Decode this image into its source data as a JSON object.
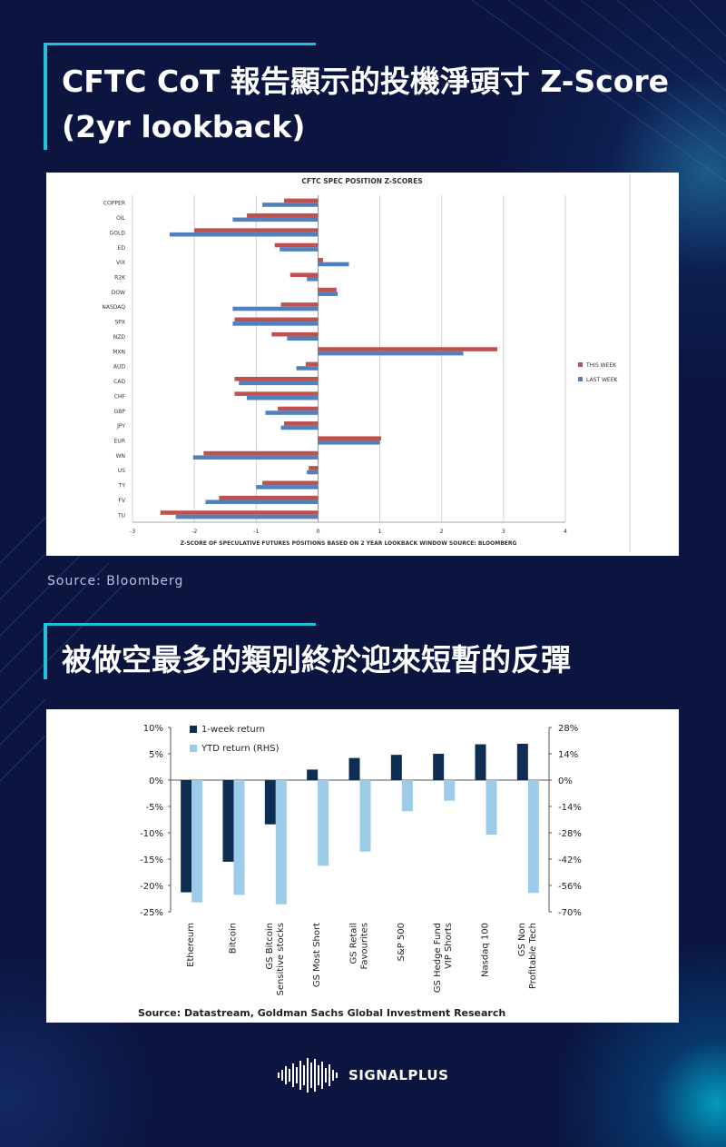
{
  "section1": {
    "title_line1": "CFTC CoT 報告顯示的投機淨頭寸 Z-Score",
    "title_line2": "(2yr lookback)",
    "source": "Source:  Bloomberg"
  },
  "section2": {
    "title": "被做空最多的類別終於迎來短暫的反彈"
  },
  "brand": {
    "name": "SIGNALPLUS"
  },
  "colors": {
    "background": "#0b1540",
    "accent": "#1fc2d8",
    "this_week": "#c0504d",
    "last_week": "#4f81bd",
    "one_week_return": "#0d2d52",
    "ytd_return": "#9dcbea"
  },
  "chart_data": [
    {
      "type": "bar",
      "orientation": "horizontal",
      "title": "CFTC SPEC POSITION Z-SCORES",
      "xlabel": "Z-SCORE OF SPECULATIVE  FUTURES  POSITIONS  BASED ON 2 YEAR LOOKBACK WINDOW   SOURCE:  BLOOMBERG",
      "xlim": [
        -3,
        4
      ],
      "xticks": [
        -3,
        -2,
        -1,
        0,
        1,
        2,
        3,
        4
      ],
      "grid": true,
      "legend_position": "right",
      "categories": [
        "COPPER",
        "OIL",
        "GOLD",
        "ED",
        "VIX",
        "R2K",
        "DOW",
        "NASDAQ",
        "SPX",
        "NZD",
        "MXN",
        "AUD",
        "CAD",
        "CHF",
        "GBP",
        "JPY",
        "EUR",
        "WN",
        "US",
        "TY",
        "FV",
        "TU"
      ],
      "series": [
        {
          "name": "THIS WEEK",
          "values": [
            -0.55,
            -1.15,
            -2.0,
            -0.7,
            0.08,
            -0.45,
            0.3,
            -0.6,
            -1.35,
            -0.75,
            2.9,
            -0.2,
            -1.35,
            -1.35,
            -0.65,
            -0.55,
            1.02,
            -1.85,
            -0.15,
            -0.9,
            -1.6,
            -2.55
          ]
        },
        {
          "name": "LAST WEEK",
          "values": [
            -0.9,
            -1.38,
            -2.4,
            -0.62,
            0.5,
            -0.18,
            0.32,
            -1.38,
            -1.38,
            -0.5,
            2.35,
            -0.35,
            -1.28,
            -1.15,
            -0.85,
            -0.6,
            1.0,
            -2.02,
            -0.18,
            -1.0,
            -1.82,
            -2.3
          ]
        }
      ]
    },
    {
      "type": "bar",
      "title": "",
      "source": "Source: Datastream, Goldman Sachs Global Investment Research",
      "categories": [
        [
          "Ethereum"
        ],
        [
          "Bitcoin"
        ],
        [
          "GS Bitcoin",
          "Sensitive stocks"
        ],
        [
          "GS Most Short"
        ],
        [
          "GS Retail",
          "Favourites"
        ],
        [
          "S&P 500"
        ],
        [
          "GS Hedge Fund",
          "VIP Shorts"
        ],
        [
          "Nasdaq 100"
        ],
        [
          "GS Non",
          "Profitable Tech"
        ]
      ],
      "y_left": {
        "ticks": [
          "10%",
          "5%",
          "0%",
          "-5%",
          "-10%",
          "-15%",
          "-20%",
          "-25%"
        ],
        "range": [
          -25,
          10
        ]
      },
      "y_right": {
        "ticks": [
          "28%",
          "14%",
          "0%",
          "-14%",
          "-28%",
          "-42%",
          "-56%",
          "-70%"
        ],
        "range": [
          -70,
          28
        ]
      },
      "legend_position": "top-left",
      "series": [
        {
          "name": "1-week return",
          "axis": "left",
          "values": [
            -21.3,
            -15.5,
            -8.4,
            2.0,
            4.2,
            4.8,
            5.0,
            6.8,
            6.9
          ]
        },
        {
          "name": "YTD return (RHS)",
          "axis": "right",
          "values": [
            -65,
            -61,
            -66,
            -45.5,
            -38,
            -16.5,
            -11,
            -29,
            -60
          ]
        }
      ]
    }
  ]
}
